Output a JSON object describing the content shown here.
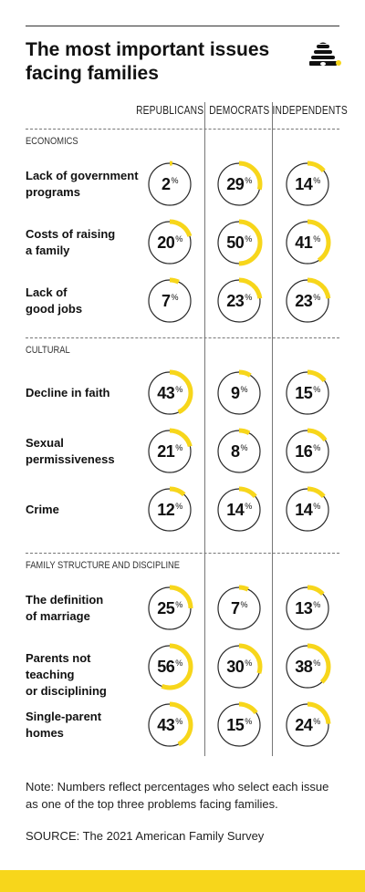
{
  "header": {
    "title_line1": "The most important issues",
    "title_line2": "facing families",
    "logo": "beehive-icon"
  },
  "colors": {
    "accent": "#f7d61b",
    "ring": "#2a2a2a",
    "text": "#111111"
  },
  "chart_data": {
    "type": "radial-gauge-table",
    "unit": "%",
    "columns": [
      "REPUBLICANS",
      "DEMOCRATS",
      "INDEPENDENTS"
    ],
    "sections": [
      {
        "name": "ECONOMICS",
        "rows": [
          {
            "label1": "Lack of government",
            "label2": "programs",
            "values": [
              2,
              29,
              14
            ]
          },
          {
            "label1": "Costs of raising",
            "label2": "a family",
            "values": [
              20,
              50,
              41
            ]
          },
          {
            "label1": "Lack of",
            "label2": "good jobs",
            "values": [
              7,
              23,
              23
            ]
          }
        ]
      },
      {
        "name": "CULTURAL",
        "rows": [
          {
            "label1": "Decline in faith",
            "label2": "",
            "values": [
              43,
              9,
              15
            ]
          },
          {
            "label1": "Sexual",
            "label2": "permissiveness",
            "values": [
              21,
              8,
              16
            ]
          },
          {
            "label1": "Crime",
            "label2": "",
            "values": [
              12,
              14,
              14
            ]
          }
        ]
      },
      {
        "name": "FAMILY STRUCTURE AND DISCIPLINE",
        "rows": [
          {
            "label1": "The definition",
            "label2": "of marriage",
            "values": [
              25,
              7,
              13
            ]
          },
          {
            "label1": "Parents not teaching",
            "label2": "or disciplining",
            "values": [
              56,
              30,
              38
            ]
          },
          {
            "label1": "Single-parent",
            "label2": "homes",
            "values": [
              43,
              15,
              24
            ]
          }
        ]
      }
    ]
  },
  "footer": {
    "note": "Note: Numbers reflect percentages who select each issue as one of the top three problems facing families.",
    "source": "SOURCE: The 2021 American Family Survey"
  }
}
